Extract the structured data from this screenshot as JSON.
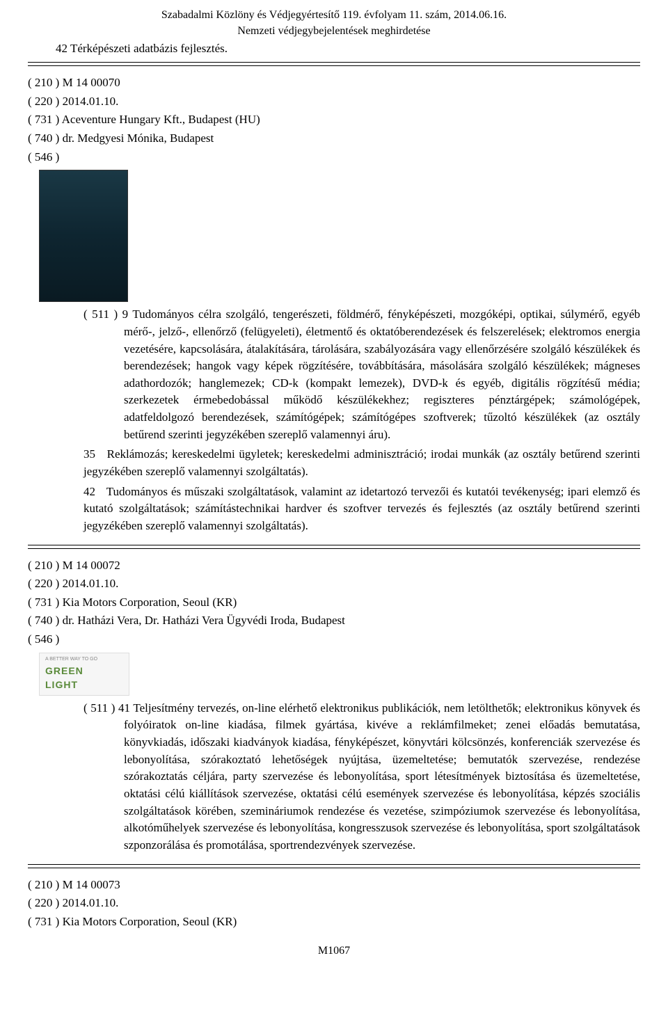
{
  "header": {
    "line1": "Szabadalmi Közlöny és Védjegyértesítő 119. évfolyam 11. szám, 2014.06.16.",
    "line2": "Nemzeti védjegybejelentések meghirdetése"
  },
  "top_class_42": "42    Térképészeti adatbázis fejlesztés.",
  "records": [
    {
      "lines": [
        "( 210 ) M 14 00070",
        "( 220 ) 2014.01.10.",
        "( 731 ) Aceventure Hungary Kft., Budapest (HU)",
        "( 740 ) dr. Medgyesi Mónika, Budapest",
        "( 546 )"
      ],
      "image": 1,
      "classes": [
        {
          "prefix": "( 511 ) 9",
          "text": "Tudományos célra szolgáló, tengerészeti, földmérő, fényképészeti, mozgóképi, optikai, súlymérő, egyéb mérő-, jelző-, ellenőrző (felügyeleti), életmentő és oktatóberendezések és felszerelések; elektromos energia vezetésére, kapcsolására, átalakítására, tárolására, szabályozására vagy ellenőrzésére szolgáló készülékek és berendezések; hangok vagy képek rögzítésére, továbbítására, másolására szolgáló készülékek; mágneses adathordozók; hanglemezek; CD-k (kompakt lemezek), DVD-k és egyéb, digitális rögzítésű média; szerkezetek érmebedobással működő készülékekhez; regiszteres pénztárgépek; számológépek, adatfeldolgozó berendezések, számítógépek; számítógépes szoftverek; tűzoltó készülékek (az osztály betűrend szerinti jegyzékében szereplő valamennyi áru)."
        },
        {
          "prefix": "35",
          "text": "Reklámozás; kereskedelmi ügyletek; kereskedelmi adminisztráció; irodai munkák (az osztály betűrend szerinti jegyzékében szereplő valamennyi szolgáltatás)."
        },
        {
          "prefix": "42",
          "text": "Tudományos és műszaki szolgáltatások, valamint az idetartozó tervezői és kutatói tevékenység; ipari elemző és kutató szolgáltatások; számítástechnikai hardver és szoftver tervezés és fejlesztés (az osztály betűrend szerinti jegyzékében szereplő valamennyi szolgáltatás)."
        }
      ]
    },
    {
      "lines": [
        "( 210 ) M 14 00072",
        "( 220 ) 2014.01.10.",
        "( 731 ) Kia Motors Corporation, Seoul (KR)",
        "( 740 ) dr. Hatházi Vera, Dr. Hatházi Vera Ügyvédi Iroda, Budapest",
        "( 546 )"
      ],
      "image": 2,
      "classes": [
        {
          "prefix": "( 511 ) 41",
          "text": "Teljesítmény tervezés, on-line elérhető elektronikus publikációk, nem letölthetők; elektronikus könyvek és folyóiratok on-line kiadása, filmek gyártása, kivéve a reklámfilmeket; zenei előadás bemutatása, könyvkiadás, időszaki kiadványok kiadása, fényképészet, könyvtári kölcsönzés, konferenciák szervezése és lebonyolítása, szórakoztató lehetőségek nyújtása, üzemeltetése; bemutatók szervezése, rendezése szórakoztatás céljára, party szervezése és lebonyolítása, sport létesítmények biztosítása és üzemeltetése, oktatási célú kiállítások szervezése, oktatási célú események szervezése és lebonyolítása, képzés szociális szolgáltatások körében, szemináriumok rendezése és vezetése, szimpóziumok szervezése és lebonyolítása, alkotóműhelyek szervezése és lebonyolítása, kongresszusok szervezése és lebonyolítása, sport szolgáltatások szponzorálása és promotálása, sportrendezvények szervezése."
        }
      ]
    },
    {
      "lines": [
        "( 210 ) M 14 00073",
        "( 220 ) 2014.01.10.",
        "( 731 ) Kia Motors Corporation, Seoul (KR)"
      ],
      "image": 0,
      "classes": []
    }
  ],
  "greenlight": {
    "tiny": "A BETTER WAY TO GO",
    "line1": "GREEN",
    "line2": "LIGHT"
  },
  "footer_page": "M1067"
}
